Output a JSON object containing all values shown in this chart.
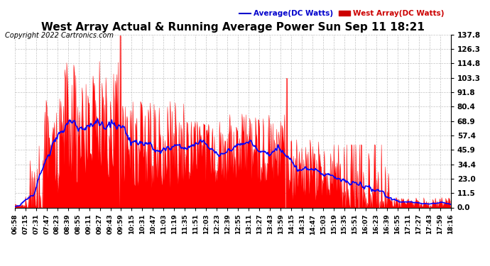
{
  "title": "West Array Actual & Running Average Power Sun Sep 11 18:21",
  "copyright": "Copyright 2022 Cartronics.com",
  "legend_avg": "Average(DC Watts)",
  "legend_west": "West Array(DC Watts)",
  "yticks": [
    0.0,
    11.5,
    23.0,
    34.4,
    45.9,
    57.4,
    68.9,
    80.4,
    91.8,
    103.3,
    114.8,
    126.3,
    137.8
  ],
  "ymax": 137.8,
  "ymin": 0.0,
  "xtick_labels": [
    "06:58",
    "07:15",
    "07:31",
    "07:47",
    "08:23",
    "08:39",
    "08:55",
    "09:11",
    "09:27",
    "09:43",
    "09:59",
    "10:15",
    "10:31",
    "10:47",
    "11:03",
    "11:19",
    "11:35",
    "11:51",
    "12:03",
    "12:23",
    "12:39",
    "12:55",
    "13:11",
    "13:27",
    "13:43",
    "13:59",
    "14:15",
    "14:31",
    "14:47",
    "15:03",
    "15:19",
    "15:35",
    "15:51",
    "16:07",
    "16:23",
    "16:39",
    "16:55",
    "17:11",
    "17:27",
    "17:43",
    "17:59",
    "18:16"
  ],
  "background_color": "#ffffff",
  "bar_color": "#ff0000",
  "avg_line_color": "#0000ff",
  "title_color": "#000000",
  "legend_avg_color": "#0000cc",
  "legend_west_color": "#cc0000"
}
